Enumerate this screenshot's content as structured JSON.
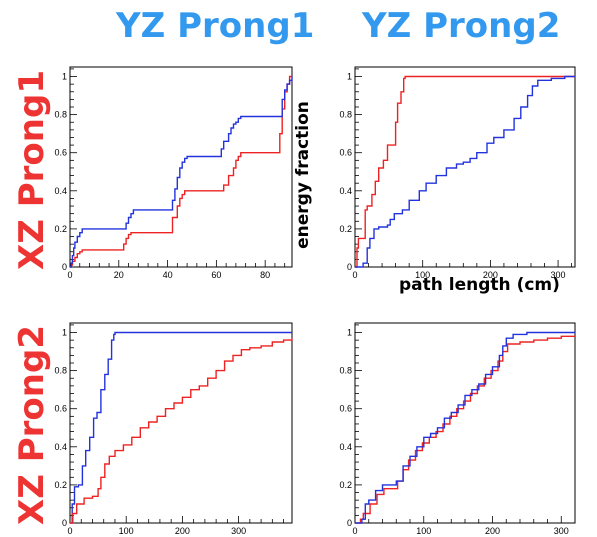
{
  "column_titles": [
    "YZ Prong1",
    "YZ Prong2"
  ],
  "row_titles": [
    "XZ Prong1",
    "XZ Prong2"
  ],
  "axis_labels": {
    "y": "energy fraction",
    "x": "path length (cm)"
  },
  "colors": {
    "red_series": "#ee2222",
    "blue_series": "#2233dd",
    "column_title": "#3399ee",
    "row_title": "#ee3333"
  },
  "chart_data": [
    {
      "type": "line",
      "panel": "XZ Prong1 / YZ Prong1",
      "xlim": [
        0,
        91
      ],
      "ylim": [
        0,
        1.05
      ],
      "xticks": [
        0,
        20,
        40,
        60,
        80
      ],
      "yticks": [
        0,
        0.2,
        0.4,
        0.6,
        0.8,
        1
      ],
      "ytick_labels": [
        "0",
        "0.2",
        "0.4",
        "0.6",
        "0.8",
        "1"
      ],
      "xlabel": "",
      "ylabel": "",
      "series": [
        {
          "color": "red",
          "x": [
            0,
            0.5,
            1,
            2,
            3,
            4,
            5,
            21,
            22,
            23,
            24,
            25,
            40,
            42,
            44,
            45,
            46,
            47,
            48,
            62,
            63,
            65,
            67,
            68,
            69,
            70,
            85,
            86,
            87,
            88,
            89,
            90,
            91
          ],
          "y": [
            0,
            0.01,
            0.03,
            0.05,
            0.07,
            0.08,
            0.09,
            0.09,
            0.12,
            0.15,
            0.17,
            0.18,
            0.18,
            0.26,
            0.32,
            0.36,
            0.38,
            0.4,
            0.4,
            0.4,
            0.43,
            0.48,
            0.52,
            0.56,
            0.58,
            0.6,
            0.6,
            0.7,
            0.83,
            0.92,
            0.96,
            1.0,
            1.0
          ]
        },
        {
          "color": "blue",
          "x": [
            0,
            0.5,
            1,
            1.5,
            2,
            3,
            4,
            5,
            22,
            23,
            24,
            25,
            26,
            41,
            42,
            43,
            44,
            45,
            46,
            47,
            48,
            61,
            62,
            63,
            65,
            66,
            67,
            68,
            69,
            70,
            86,
            87,
            88,
            89,
            90,
            91
          ],
          "y": [
            0,
            0.02,
            0.06,
            0.1,
            0.13,
            0.16,
            0.18,
            0.2,
            0.2,
            0.23,
            0.26,
            0.28,
            0.3,
            0.3,
            0.35,
            0.41,
            0.47,
            0.52,
            0.55,
            0.57,
            0.58,
            0.58,
            0.62,
            0.66,
            0.7,
            0.73,
            0.75,
            0.76,
            0.78,
            0.79,
            0.79,
            0.88,
            0.93,
            0.96,
            0.98,
            1.0
          ]
        }
      ]
    },
    {
      "type": "line",
      "panel": "XZ Prong1 / YZ Prong2",
      "xlim": [
        0,
        325
      ],
      "ylim": [
        0,
        1.05
      ],
      "xticks": [
        0,
        100,
        200,
        300
      ],
      "yticks": [
        0,
        0.2,
        0.4,
        0.6,
        0.8,
        1
      ],
      "ytick_labels": [
        "0",
        "0.2",
        "0.4",
        "0.6",
        "0.8",
        "1"
      ],
      "xlabel": "path length (cm)",
      "ylabel": "energy fraction",
      "series": [
        {
          "color": "red",
          "x": [
            0,
            3,
            5,
            8,
            15,
            18,
            25,
            30,
            35,
            42,
            48,
            50,
            60,
            63,
            68,
            72,
            74,
            325
          ],
          "y": [
            0,
            0.1,
            0.15,
            0.15,
            0.3,
            0.32,
            0.38,
            0.45,
            0.52,
            0.56,
            0.64,
            0.64,
            0.76,
            0.86,
            0.92,
            0.99,
            1.0,
            1.0
          ]
        },
        {
          "color": "blue",
          "x": [
            0,
            12,
            18,
            22,
            28,
            35,
            48,
            52,
            58,
            70,
            80,
            95,
            105,
            120,
            135,
            150,
            160,
            170,
            180,
            195,
            205,
            220,
            235,
            245,
            255,
            262,
            270,
            290,
            310,
            325
          ],
          "y": [
            0,
            0.02,
            0.1,
            0.15,
            0.2,
            0.21,
            0.22,
            0.25,
            0.28,
            0.3,
            0.35,
            0.4,
            0.44,
            0.48,
            0.52,
            0.54,
            0.55,
            0.57,
            0.6,
            0.65,
            0.68,
            0.72,
            0.78,
            0.84,
            0.9,
            0.95,
            0.98,
            0.99,
            1.0,
            1.0
          ]
        }
      ]
    },
    {
      "type": "line",
      "panel": "XZ Prong2 / YZ Prong1",
      "xlim": [
        0,
        395
      ],
      "ylim": [
        0,
        1.05
      ],
      "xticks": [
        0,
        100,
        200,
        300
      ],
      "yticks": [
        0,
        0.2,
        0.4,
        0.6,
        0.8,
        1
      ],
      "ytick_labels": [
        "0",
        "0.2",
        "0.4",
        "0.6",
        "0.8",
        "1"
      ],
      "xlabel": "",
      "ylabel": "",
      "series": [
        {
          "color": "blue",
          "x": [
            0,
            4,
            8,
            15,
            22,
            28,
            35,
            42,
            48,
            55,
            62,
            68,
            74,
            78,
            80,
            395
          ],
          "y": [
            0,
            0.1,
            0.19,
            0.2,
            0.3,
            0.38,
            0.45,
            0.55,
            0.58,
            0.7,
            0.78,
            0.86,
            0.96,
            0.99,
            1.0,
            1.0
          ]
        },
        {
          "color": "red",
          "x": [
            0,
            5,
            12,
            25,
            40,
            50,
            55,
            62,
            70,
            80,
            95,
            110,
            125,
            140,
            155,
            170,
            185,
            200,
            215,
            230,
            245,
            260,
            275,
            290,
            305,
            320,
            340,
            360,
            380,
            395
          ],
          "y": [
            0,
            0.05,
            0.1,
            0.13,
            0.14,
            0.18,
            0.24,
            0.31,
            0.35,
            0.38,
            0.41,
            0.45,
            0.5,
            0.53,
            0.56,
            0.6,
            0.63,
            0.66,
            0.7,
            0.72,
            0.76,
            0.8,
            0.85,
            0.88,
            0.91,
            0.92,
            0.93,
            0.95,
            0.96,
            0.97
          ]
        }
      ]
    },
    {
      "type": "line",
      "panel": "XZ Prong2 / YZ Prong2",
      "xlim": [
        0,
        320
      ],
      "ylim": [
        0,
        1.05
      ],
      "xticks": [
        0,
        100,
        200,
        300
      ],
      "yticks": [
        0,
        0.2,
        0.4,
        0.6,
        0.8,
        1
      ],
      "ytick_labels": [
        "0",
        "0.2",
        "0.4",
        "0.6",
        "0.8",
        "1"
      ],
      "xlabel": "",
      "ylabel": "",
      "series": [
        {
          "color": "red",
          "x": [
            0,
            8,
            12,
            22,
            32,
            42,
            55,
            62,
            70,
            78,
            88,
            98,
            108,
            118,
            128,
            138,
            148,
            158,
            168,
            178,
            188,
            198,
            208,
            215,
            222,
            240,
            260,
            280,
            300,
            320
          ],
          "y": [
            0,
            0.02,
            0.05,
            0.1,
            0.15,
            0.18,
            0.18,
            0.22,
            0.28,
            0.33,
            0.38,
            0.42,
            0.45,
            0.48,
            0.52,
            0.56,
            0.6,
            0.64,
            0.68,
            0.72,
            0.76,
            0.8,
            0.85,
            0.9,
            0.94,
            0.95,
            0.96,
            0.97,
            0.98,
            0.98
          ]
        },
        {
          "color": "blue",
          "x": [
            0,
            10,
            15,
            20,
            30,
            40,
            50,
            60,
            70,
            80,
            90,
            100,
            110,
            120,
            130,
            140,
            150,
            160,
            170,
            180,
            190,
            200,
            210,
            215,
            220,
            230,
            250,
            270,
            300,
            320
          ],
          "y": [
            0,
            0.02,
            0.1,
            0.12,
            0.17,
            0.2,
            0.2,
            0.22,
            0.3,
            0.35,
            0.4,
            0.45,
            0.47,
            0.5,
            0.55,
            0.58,
            0.62,
            0.67,
            0.7,
            0.73,
            0.78,
            0.82,
            0.88,
            0.93,
            0.97,
            0.99,
            1.0,
            1.0,
            1.0,
            1.0
          ]
        }
      ]
    }
  ]
}
